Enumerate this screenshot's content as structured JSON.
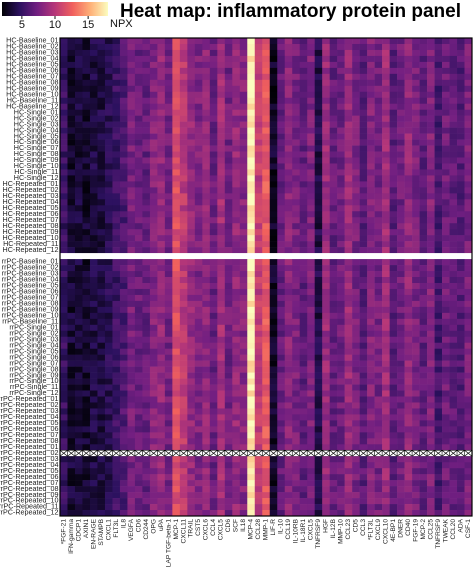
{
  "chart_data": {
    "type": "heatmap",
    "title": "Heat map: inflammatory protein panel",
    "colorbar": {
      "label": "NPX",
      "ticks": [
        5,
        10,
        15
      ],
      "range": [
        2,
        18
      ],
      "colors": [
        "#000004",
        "#2c115f",
        "#721f81",
        "#b73779",
        "#f1605d",
        "#feb078",
        "#fcfdbf"
      ]
    },
    "missing_row_index": 69,
    "columns": [
      {
        "label": "*FGF-21",
        "base": 5.0
      },
      {
        "label": "IFN-gamma",
        "base": 3.4
      },
      {
        "label": "CDCP1",
        "base": 3.6
      },
      {
        "label": "AXIN1",
        "base": 3.2
      },
      {
        "label": "EN-RAGE",
        "base": 3.8
      },
      {
        "label": "STAMPB",
        "base": 3.9
      },
      {
        "label": "CXCL1",
        "base": 4.3
      },
      {
        "label": "FLT3L",
        "base": 5.2
      },
      {
        "label": "IL8",
        "base": 5.9
      },
      {
        "label": "VEGFA",
        "base": 7.6
      },
      {
        "label": "CD6",
        "base": 7.0
      },
      {
        "label": "CD244",
        "base": 6.8
      },
      {
        "label": "OPG",
        "base": 8.0
      },
      {
        "label": "uPA",
        "base": 8.6
      },
      {
        "label": "LAP TGF-beta-1",
        "base": 7.4
      },
      {
        "label": "MCP-1",
        "base": 11.6
      },
      {
        "label": "CXCL11",
        "base": 10.2
      },
      {
        "label": "TRAIL",
        "base": 8.6
      },
      {
        "label": "CST5",
        "base": 7.8
      },
      {
        "label": "CXCL6",
        "base": 8.4
      },
      {
        "label": "CCL4",
        "base": 7.0
      },
      {
        "label": "CXCL5",
        "base": 9.2
      },
      {
        "label": "CD6",
        "base": 7.2
      },
      {
        "label": "SCF",
        "base": 8.6
      },
      {
        "label": "IL18",
        "base": 8.0
      },
      {
        "label": "MCP-4",
        "base": 17.4
      },
      {
        "label": "CCL28",
        "base": 10.4
      },
      {
        "label": "MMP-1",
        "base": 12.2
      },
      {
        "label": "LIF-R",
        "base": 3.0
      },
      {
        "label": "IL-10",
        "base": 6.8
      },
      {
        "label": "CCL19",
        "base": 8.2
      },
      {
        "label": "IL-10RB",
        "base": 7.6
      },
      {
        "label": "IL-18R1",
        "base": 6.6
      },
      {
        "label": "CXCL5",
        "base": 7.8
      },
      {
        "label": "TNFRSF9",
        "base": 4.0
      },
      {
        "label": "HGF",
        "base": 8.8
      },
      {
        "label": "IL-12B",
        "base": 6.8
      },
      {
        "label": "MMP-10",
        "base": 7.2
      },
      {
        "label": "CCL23",
        "base": 8.8
      },
      {
        "label": "CD5",
        "base": 7.6
      },
      {
        "label": "CCL3",
        "base": 6.4
      },
      {
        "label": "*FLT3L",
        "base": 8.0
      },
      {
        "label": "CXCL9",
        "base": 7.4
      },
      {
        "label": "CXCL10",
        "base": 9.0
      },
      {
        "label": "4E-BP1",
        "base": 6.4
      },
      {
        "label": "DNER",
        "base": 7.2
      },
      {
        "label": "CD40",
        "base": 8.6
      },
      {
        "label": "FGF-19",
        "base": 7.6
      },
      {
        "label": "MCP-2",
        "base": 6.6
      },
      {
        "label": "CCL25",
        "base": 8.0
      },
      {
        "label": "TNFRSF9",
        "base": 5.6
      },
      {
        "label": "TWEAK",
        "base": 7.2
      },
      {
        "label": "CCL20",
        "base": 6.6
      },
      {
        "label": "ADA",
        "base": 6.2
      },
      {
        "label": "CSF-1",
        "base": 7.6
      }
    ],
    "rows": [
      "HC-Baseline_01",
      "HC-Baseline_02",
      "HC-Baseline_03",
      "HC-Baseline_04",
      "HC-Baseline_05",
      "HC-Baseline_06",
      "HC-Baseline_07",
      "HC-Baseline_08",
      "HC-Baseline_09",
      "HC-Baseline_10",
      "HC-Baseline_11",
      "HC-Baseline_12",
      "HC-Single_01",
      "HC-Single_02",
      "HC-Single_03",
      "HC-Single_04",
      "HC-Single_05",
      "HC-Single_06",
      "HC-Single_07",
      "HC-Single_08",
      "HC-Single_09",
      "HC-Single_10",
      "HC-Single_11",
      "HC-Single_12",
      "HC-Repeated_01",
      "HC-Repeated_02",
      "HC-Repeated_03",
      "HC-Repeated_04",
      "HC-Repeated_05",
      "HC-Repeated_06",
      "HC-Repeated_07",
      "HC-Repeated_08",
      "HC-Repeated_09",
      "HC-Repeated_10",
      "HC-Repeated_11",
      "HC-Repeated_12",
      "",
      "rrPC-Baseline_01",
      "rrPC-Baseline_02",
      "rrPC-Baseline_03",
      "rrPC-Baseline_04",
      "rrPC-Baseline_05",
      "rrPC-Baseline_06",
      "rrPC-Baseline_07",
      "rrPC-Baseline_08",
      "rrPC-Baseline_09",
      "rrPC-Baseline_10",
      "rrPC-Baseline_11",
      "rrPC-Single_01",
      "rrPC-Single_02",
      "rrPC-Single_03",
      "rrPC-Single_04",
      "rrPC-Single_05",
      "rrPC-Single_06",
      "rrPC-Single_07",
      "rrPC-Single_08",
      "rrPC-Single_09",
      "rrPC-Single_10",
      "rrPC-Single_11",
      "rrPC-Single_12",
      "rrPC-Repeated_01",
      "rrPC-Repeated_02",
      "rrPC-Repeated_03",
      "rrPC-Repeated_04",
      "rrPC-Repeated_05",
      "rrPC-Repeated_06",
      "rrPC-Repeated_07",
      "rrPC-Repeated_08",
      "rrPC-Repeated_01",
      "rrPC-Repeated_02",
      "rrPC-Repeated_03",
      "rrPC-Repeated_04",
      "rrPC-Repeated_05",
      "rrPC-Repeated_06",
      "rrPC-Repeated_07",
      "rrPC-Repeated_08",
      "rrPC-Repeated_09",
      "rrPC-Repeated_10",
      "rrPC-Repeated_11",
      "rrPC-Repeated_12"
    ],
    "gap_row_index": 36,
    "note": ""
  }
}
